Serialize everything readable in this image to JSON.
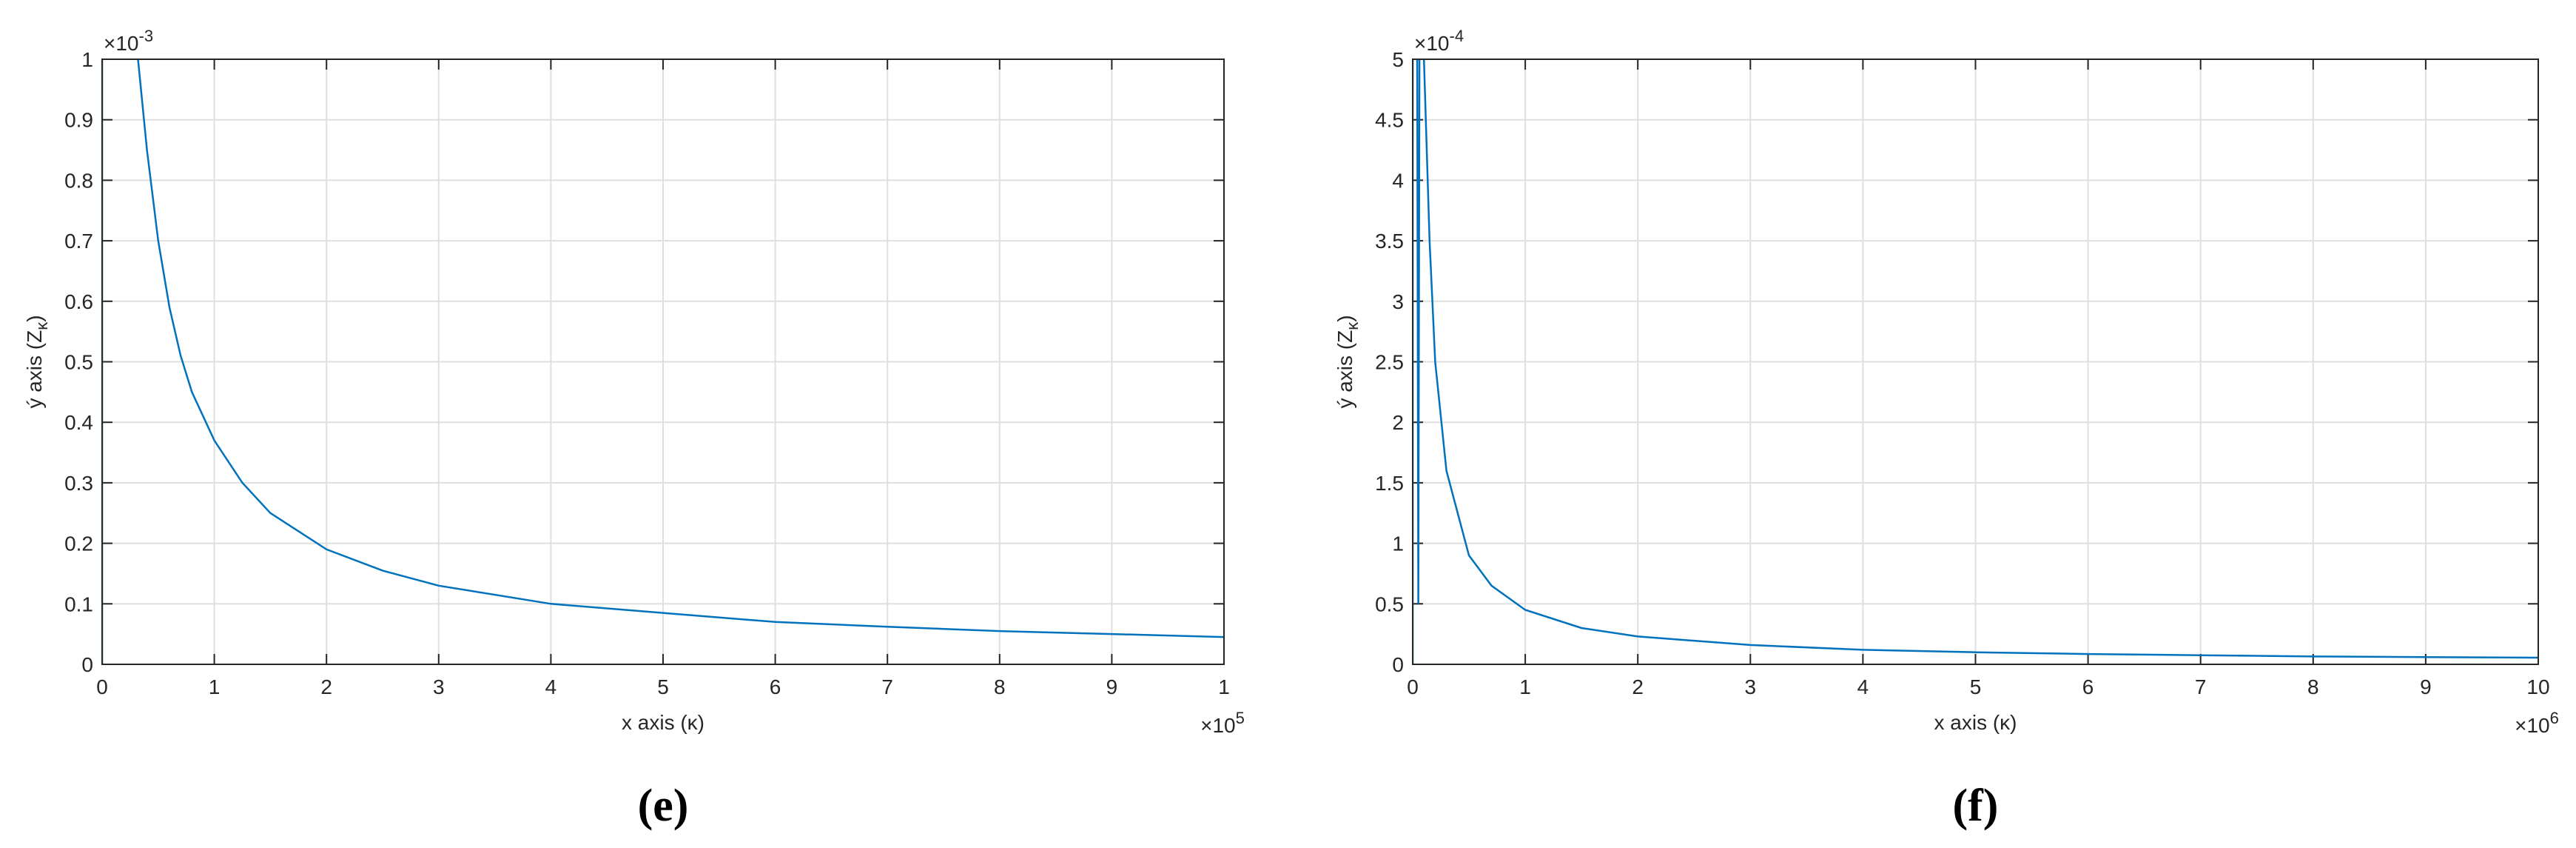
{
  "chart_data": [
    {
      "type": "line",
      "caption": "(e)",
      "xlabel": "x axis (κ)",
      "ylabel": [
        "ý axis (Z",
        "κ",
        ")"
      ],
      "x_exponent": {
        "base": "×10",
        "power": "5"
      },
      "y_exponent": {
        "base": "×10",
        "power": "-3"
      },
      "xlim": [
        0,
        10
      ],
      "xticks": [
        0,
        1,
        2,
        3,
        4,
        5,
        6,
        7,
        8,
        9,
        {
          "value": 10,
          "label": "1"
        }
      ],
      "ylim": [
        0,
        1
      ],
      "yticks": [
        0,
        0.1,
        0.2,
        0.3,
        0.4,
        0.5,
        0.6,
        0.7,
        0.8,
        0.9,
        1
      ],
      "grid": true,
      "x": [
        0,
        0,
        0.1,
        0.32,
        0.4,
        0.5,
        0.6,
        0.7,
        0.8,
        1,
        1.25,
        1.5,
        2,
        2.5,
        3,
        4,
        5,
        6,
        7,
        8,
        9,
        10
      ],
      "series": [
        {
          "color": "#0072bd",
          "values": [
            0,
            1,
            null,
            1,
            0.85,
            0.7,
            0.59,
            0.51,
            0.45,
            0.37,
            0.3,
            0.25,
            0.19,
            0.155,
            0.13,
            0.1,
            0.085,
            0.07,
            0.062,
            0.055,
            0.05,
            0.045
          ]
        }
      ]
    },
    {
      "type": "line",
      "caption": "(f)",
      "xlabel": "x axis (κ)",
      "ylabel": [
        "ý axis (Z",
        "κ",
        ")"
      ],
      "x_exponent": {
        "base": "×10",
        "power": "6"
      },
      "y_exponent": {
        "base": "×10",
        "power": "-4"
      },
      "xlim": [
        0,
        10
      ],
      "xticks": [
        0,
        1,
        2,
        3,
        4,
        5,
        6,
        7,
        8,
        9,
        10
      ],
      "ylim": [
        0,
        5
      ],
      "yticks": [
        0,
        0.5,
        1,
        1.5,
        2,
        2.5,
        3,
        3.5,
        4,
        4.5,
        5
      ],
      "grid": true,
      "x": [
        0,
        0,
        0.02,
        0.04,
        0.05,
        0.06,
        0.08,
        0.1,
        0.15,
        0.2,
        0.3,
        0.5,
        0.7,
        1,
        1.5,
        2,
        3,
        4,
        5,
        6,
        7,
        8,
        9,
        10
      ],
      "series": [
        {
          "color": "#0072bd",
          "values": [
            0,
            5,
            null,
            5,
            0.5,
            5,
            null,
            5,
            3.5,
            2.5,
            1.6,
            0.9,
            0.65,
            0.45,
            0.3,
            0.23,
            0.16,
            0.12,
            0.1,
            0.085,
            0.075,
            0.065,
            0.06,
            0.055
          ]
        }
      ]
    }
  ]
}
